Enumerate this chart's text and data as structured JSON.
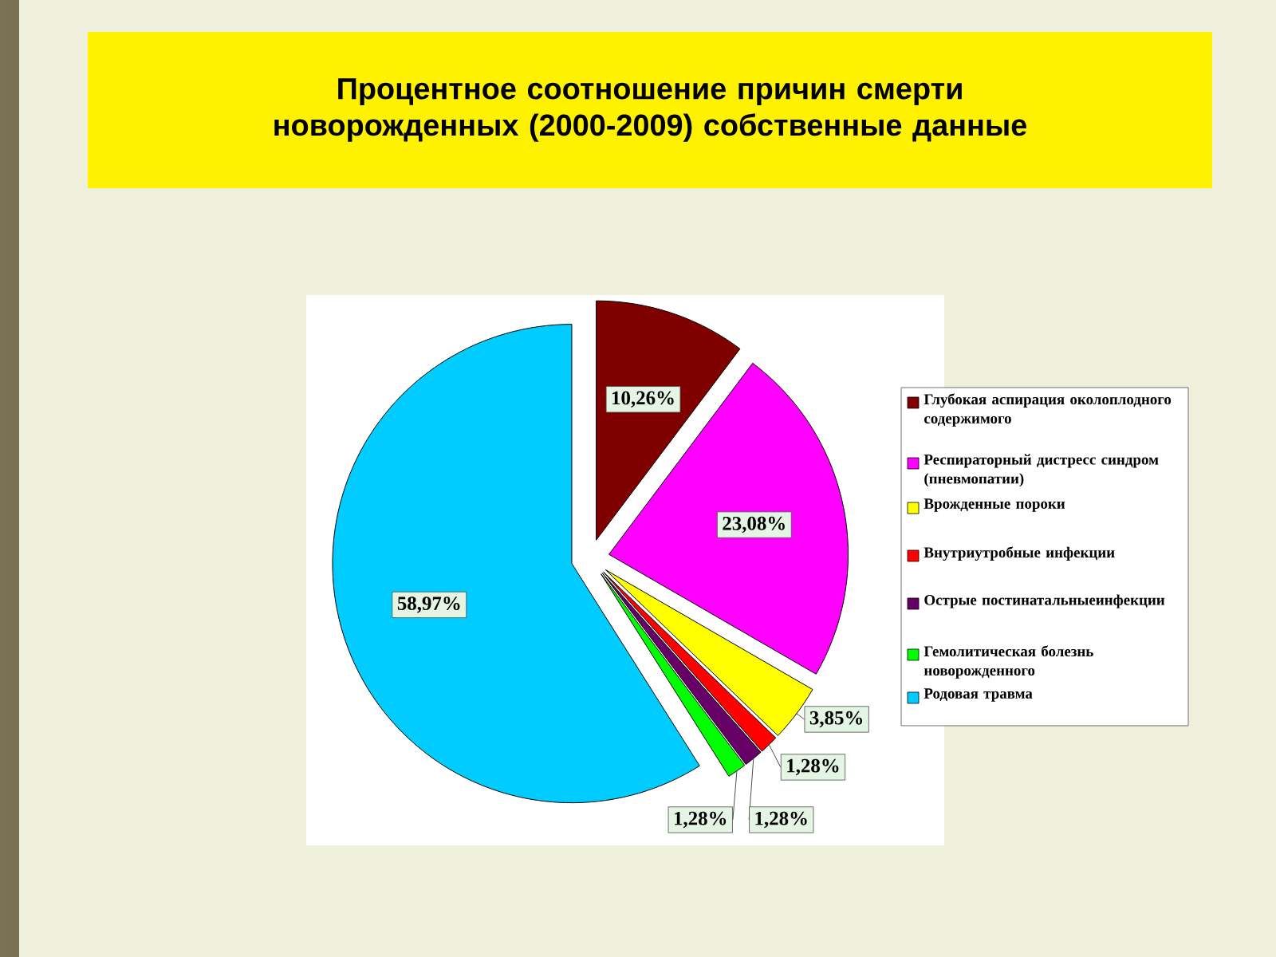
{
  "chart_data": {
    "type": "pie",
    "title": "Процентное соотношение причин смерти новорожденных (2000-2009)  собственные данные",
    "categories": [
      "Глубокая аспирация околоплодного содержимого",
      "Респираторный дистресс синдром (пневмопатии)",
      "Врожденные пороки",
      "Внутриутробные инфекции",
      "Острые постинатальныеинфекции",
      "Гемолитическая болезнь новорожденного",
      "Родовая травма"
    ],
    "values": [
      10.26,
      23.08,
      3.85,
      1.28,
      1.28,
      1.28,
      58.97
    ],
    "value_labels": [
      "10,26%",
      "23,08%",
      "3,85%",
      "1,28%",
      "1,28%",
      "1,28%",
      "58,97%"
    ],
    "colors": [
      "#800000",
      "#ff00ff",
      "#ffff00",
      "#ff0000",
      "#660066",
      "#00ff00",
      "#00ccff"
    ],
    "legend": "right"
  }
}
